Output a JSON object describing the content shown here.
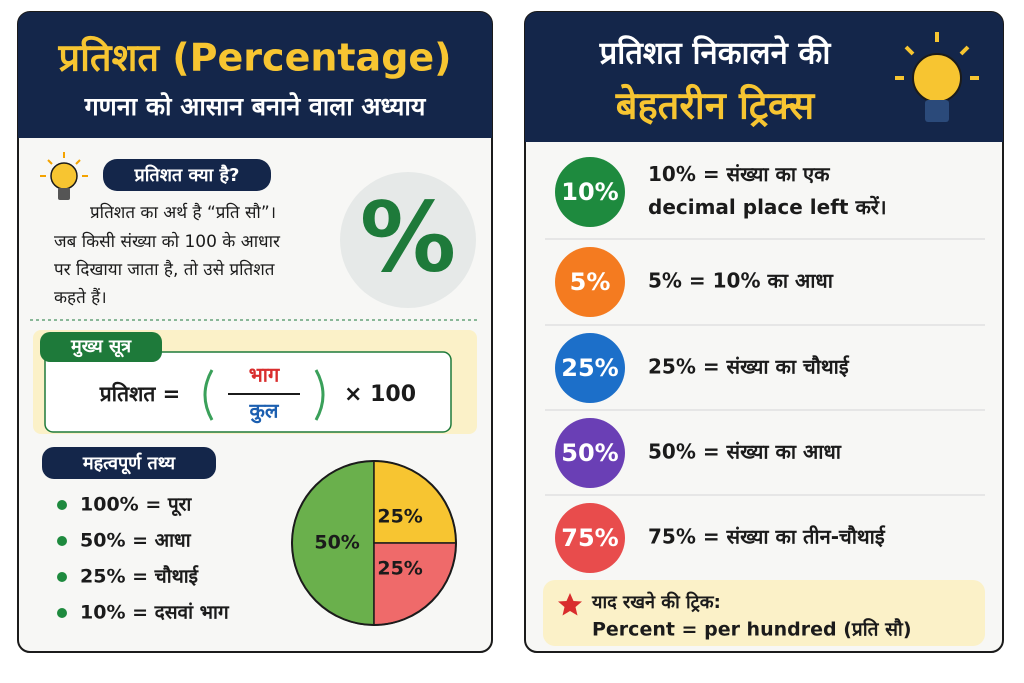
{
  "left": {
    "title": "प्रतिशत (Percentage)",
    "subtitle": "गणना को आसान बनाने वाला अध्याय",
    "what_is": {
      "heading": "प्रतिशत क्या है?",
      "lines": [
        "प्रतिशत का अर्थ है “प्रति सौ”।",
        "जब किसी संख्या को 100 के आधार",
        "पर दिखाया जाता है, तो उसे प्रतिशत",
        "कहते हैं।"
      ],
      "symbol": "%"
    },
    "formula": {
      "heading": "मुख्य सूत्र",
      "lhs": "प्रतिशत =",
      "numerator": "भाग",
      "denominator": "कुल",
      "multiplier": "× 100"
    },
    "facts": {
      "heading": "महत्वपूर्ण तथ्य",
      "items": [
        "100% = पूरा",
        "50% = आधा",
        "25% = चौथाई",
        "10% = दसवां भाग"
      ]
    },
    "pie": {
      "type": "pie",
      "values": [
        50,
        25,
        25
      ],
      "value_labels": [
        "50%",
        "25%",
        "25%"
      ],
      "colors": [
        "#6ab04c",
        "#f7c531",
        "#ef6a6a"
      ]
    }
  },
  "right": {
    "title_line1": "प्रतिशत निकालने की",
    "title_line2": "बेहतरीन ट्रिक्स",
    "tricks": [
      {
        "badge": "10%",
        "color": "#1e8a3e",
        "lines": [
          "10% = संख्या का एक",
          "decimal place left करें।"
        ]
      },
      {
        "badge": "5%",
        "color": "#f47b20",
        "lines": [
          "5% = 10% का आधा"
        ]
      },
      {
        "badge": "25%",
        "color": "#1c6fc9",
        "lines": [
          "25% = संख्या का चौथाई"
        ]
      },
      {
        "badge": "50%",
        "color": "#6a3fb5",
        "lines": [
          "50% = संख्या का आधा"
        ]
      },
      {
        "badge": "75%",
        "color": "#e84c4c",
        "lines": [
          "75% = संख्या का तीन-चौथाई"
        ]
      }
    ],
    "tip": {
      "heading": "याद रखने की ट्रिक:",
      "text": "Percent = per hundred (प्रति सौ)"
    }
  }
}
